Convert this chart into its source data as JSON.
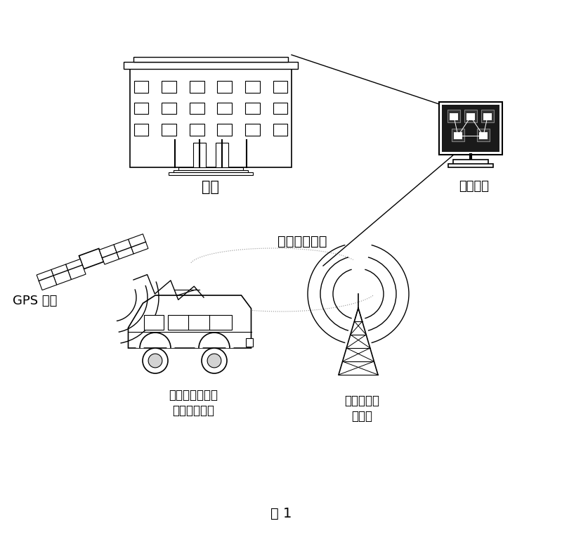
{
  "title": "图 1",
  "labels": {
    "bank": "銀行",
    "billing_center": "计费中心",
    "gps": "GPS 卫星",
    "mobile_network": "移动通信网络",
    "vehicle_terminal_line1": "安装在车辆上的",
    "vehicle_terminal_line2": "车载移动终端",
    "signal_tower_line1": "收费点信号",
    "signal_tower_line2": "发射器"
  },
  "bg_color": "#ffffff",
  "line_color": "#000000",
  "text_color": "#000000"
}
